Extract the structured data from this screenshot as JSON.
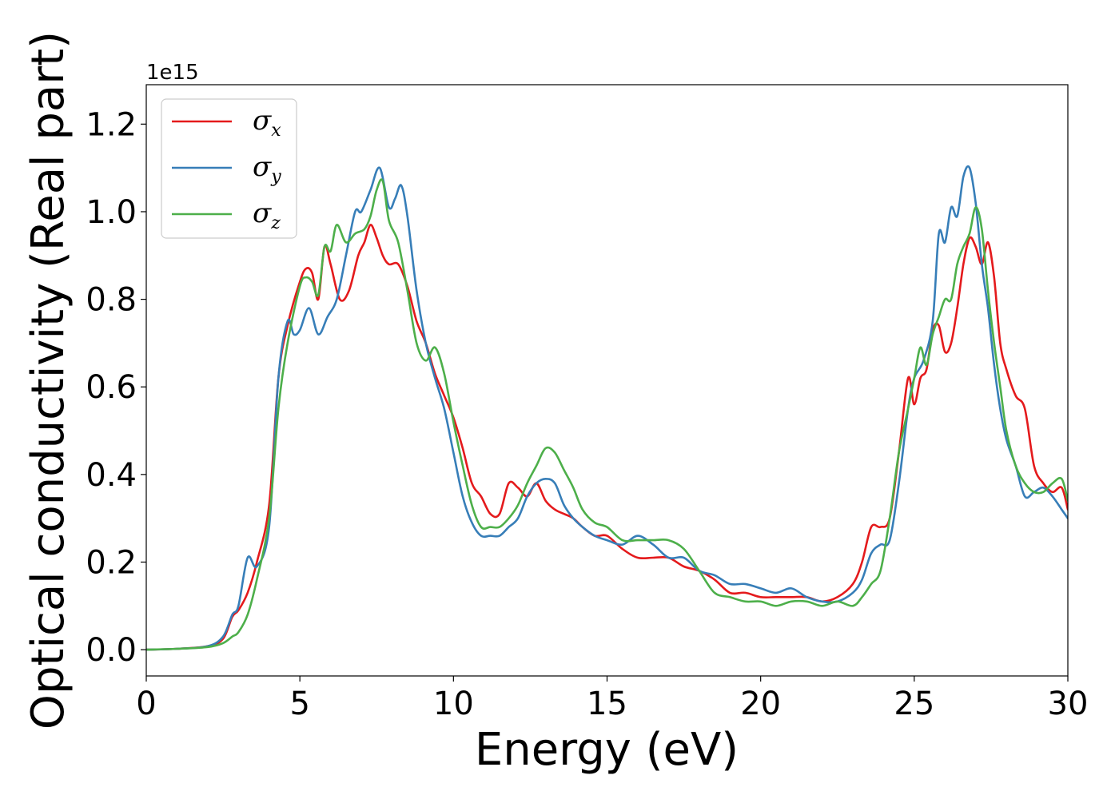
{
  "chart_data": {
    "type": "line",
    "title": "",
    "xlabel": "Energy (eV)",
    "ylabel": "Optical conductivity (Real part)",
    "y_offset_text": "1e15",
    "xlim": [
      0,
      30
    ],
    "ylim": [
      -0.06,
      1.29
    ],
    "y_scale_note": "values in units of 1e15",
    "x_ticks": [
      0,
      5,
      10,
      15,
      20,
      25,
      30
    ],
    "x_tick_labels": [
      "0",
      "5",
      "10",
      "15",
      "20",
      "25",
      "30"
    ],
    "y_ticks": [
      0.0,
      0.2,
      0.4,
      0.6,
      0.8,
      1.0,
      1.2
    ],
    "y_tick_labels": [
      "0.0",
      "0.2",
      "0.4",
      "0.6",
      "0.8",
      "1.0",
      "1.2"
    ],
    "grid": false,
    "legend_position": "top-left",
    "series": [
      {
        "name": "σx",
        "symbol": "σ",
        "subscript": "x",
        "color": "#e41a1c",
        "x": [
          0,
          1,
          2,
          2.5,
          2.8,
          3,
          3.3,
          3.6,
          4,
          4.3,
          4.6,
          5,
          5.2,
          5.4,
          5.6,
          5.8,
          6,
          6.3,
          6.6,
          6.9,
          7.1,
          7.3,
          7.5,
          7.7,
          7.9,
          8.2,
          8.5,
          8.8,
          9.1,
          9.4,
          9.7,
          10,
          10.3,
          10.6,
          10.9,
          11.2,
          11.5,
          11.8,
          12.1,
          12.4,
          12.7,
          13,
          13.3,
          13.6,
          13.9,
          14.2,
          14.6,
          15,
          15.5,
          16,
          16.5,
          17,
          17.5,
          18,
          18.5,
          19,
          19.5,
          20,
          20.5,
          21,
          21.5,
          22,
          22.5,
          23,
          23.3,
          23.6,
          23.9,
          24.2,
          24.5,
          24.8,
          25,
          25.2,
          25.4,
          25.6,
          25.8,
          26,
          26.2,
          26.4,
          26.6,
          26.8,
          27,
          27.2,
          27.4,
          27.6,
          27.8,
          28,
          28.3,
          28.6,
          28.9,
          29.2,
          29.5,
          29.8,
          30
        ],
        "y": [
          0,
          0.002,
          0.008,
          0.025,
          0.075,
          0.09,
          0.13,
          0.2,
          0.33,
          0.62,
          0.74,
          0.84,
          0.87,
          0.86,
          0.8,
          0.92,
          0.88,
          0.8,
          0.82,
          0.9,
          0.93,
          0.97,
          0.94,
          0.9,
          0.88,
          0.88,
          0.83,
          0.75,
          0.7,
          0.63,
          0.58,
          0.53,
          0.46,
          0.38,
          0.35,
          0.31,
          0.31,
          0.38,
          0.37,
          0.35,
          0.38,
          0.34,
          0.32,
          0.31,
          0.3,
          0.28,
          0.26,
          0.26,
          0.23,
          0.21,
          0.21,
          0.21,
          0.19,
          0.18,
          0.16,
          0.13,
          0.13,
          0.12,
          0.12,
          0.12,
          0.12,
          0.11,
          0.12,
          0.15,
          0.2,
          0.28,
          0.28,
          0.3,
          0.45,
          0.62,
          0.56,
          0.62,
          0.64,
          0.73,
          0.74,
          0.68,
          0.7,
          0.78,
          0.88,
          0.94,
          0.92,
          0.88,
          0.93,
          0.85,
          0.7,
          0.64,
          0.58,
          0.55,
          0.42,
          0.38,
          0.36,
          0.37,
          0.32
        ]
      },
      {
        "name": "σy",
        "symbol": "σ",
        "subscript": "y",
        "color": "#377eb8",
        "x": [
          0,
          1,
          2,
          2.5,
          2.8,
          3,
          3.3,
          3.6,
          4,
          4.3,
          4.6,
          4.8,
          5,
          5.3,
          5.6,
          5.9,
          6.2,
          6.5,
          6.8,
          7,
          7.3,
          7.6,
          7.9,
          8.1,
          8.3,
          8.5,
          8.8,
          9.1,
          9.4,
          9.7,
          10,
          10.3,
          10.6,
          10.9,
          11.2,
          11.5,
          11.8,
          12.1,
          12.4,
          12.7,
          13,
          13.3,
          13.6,
          13.9,
          14.2,
          14.6,
          15,
          15.5,
          16,
          16.5,
          17,
          17.5,
          18,
          18.5,
          19,
          19.5,
          20,
          20.5,
          21,
          21.5,
          22,
          22.5,
          23,
          23.3,
          23.6,
          23.9,
          24.2,
          24.5,
          24.8,
          25,
          25.3,
          25.6,
          25.8,
          26,
          26.2,
          26.4,
          26.6,
          26.8,
          27,
          27.2,
          27.4,
          27.6,
          27.8,
          28,
          28.3,
          28.6,
          28.9,
          29.2,
          29.5,
          29.8,
          30
        ],
        "y": [
          0,
          0.002,
          0.008,
          0.03,
          0.08,
          0.1,
          0.21,
          0.19,
          0.28,
          0.62,
          0.75,
          0.72,
          0.73,
          0.78,
          0.72,
          0.76,
          0.8,
          0.9,
          1.0,
          1.0,
          1.05,
          1.1,
          1.01,
          1.03,
          1.06,
          0.99,
          0.82,
          0.7,
          0.62,
          0.55,
          0.45,
          0.35,
          0.29,
          0.26,
          0.26,
          0.26,
          0.28,
          0.3,
          0.35,
          0.38,
          0.39,
          0.38,
          0.33,
          0.3,
          0.28,
          0.26,
          0.25,
          0.24,
          0.26,
          0.24,
          0.21,
          0.21,
          0.18,
          0.17,
          0.15,
          0.15,
          0.14,
          0.13,
          0.14,
          0.12,
          0.11,
          0.11,
          0.13,
          0.16,
          0.22,
          0.24,
          0.25,
          0.38,
          0.55,
          0.62,
          0.66,
          0.75,
          0.95,
          0.93,
          1.01,
          0.99,
          1.08,
          1.1,
          1.02,
          0.88,
          0.78,
          0.65,
          0.55,
          0.48,
          0.42,
          0.35,
          0.36,
          0.37,
          0.35,
          0.32,
          0.3
        ]
      },
      {
        "name": "σz",
        "symbol": "σ",
        "subscript": "z",
        "color": "#4daf4a",
        "x": [
          0,
          1,
          2,
          2.5,
          2.8,
          3,
          3.3,
          3.6,
          4,
          4.3,
          4.6,
          5,
          5.2,
          5.4,
          5.6,
          5.8,
          6,
          6.2,
          6.5,
          6.8,
          7.1,
          7.3,
          7.5,
          7.7,
          7.9,
          8.2,
          8.5,
          8.8,
          9.1,
          9.4,
          9.7,
          10,
          10.3,
          10.6,
          10.9,
          11.2,
          11.5,
          11.8,
          12.1,
          12.4,
          12.7,
          13,
          13.3,
          13.6,
          13.9,
          14.2,
          14.6,
          15,
          15.5,
          16,
          16.5,
          17,
          17.5,
          18,
          18.5,
          19,
          19.5,
          20,
          20.5,
          21,
          21.5,
          22,
          22.5,
          23,
          23.3,
          23.6,
          23.9,
          24.2,
          24.5,
          24.8,
          25,
          25.2,
          25.4,
          25.6,
          25.8,
          26,
          26.2,
          26.4,
          26.6,
          26.8,
          27,
          27.2,
          27.4,
          27.6,
          27.8,
          28,
          28.3,
          28.6,
          28.9,
          29.2,
          29.5,
          29.8,
          30
        ],
        "y": [
          0,
          0.002,
          0.006,
          0.015,
          0.03,
          0.04,
          0.08,
          0.16,
          0.3,
          0.55,
          0.7,
          0.83,
          0.85,
          0.84,
          0.81,
          0.92,
          0.91,
          0.97,
          0.93,
          0.95,
          0.96,
          0.99,
          1.05,
          1.07,
          0.98,
          0.93,
          0.82,
          0.7,
          0.66,
          0.69,
          0.63,
          0.52,
          0.42,
          0.33,
          0.28,
          0.28,
          0.28,
          0.3,
          0.33,
          0.38,
          0.42,
          0.46,
          0.45,
          0.41,
          0.37,
          0.32,
          0.29,
          0.28,
          0.25,
          0.25,
          0.25,
          0.25,
          0.23,
          0.18,
          0.13,
          0.12,
          0.11,
          0.11,
          0.1,
          0.11,
          0.11,
          0.1,
          0.11,
          0.1,
          0.12,
          0.15,
          0.18,
          0.3,
          0.45,
          0.55,
          0.62,
          0.69,
          0.65,
          0.72,
          0.76,
          0.8,
          0.8,
          0.88,
          0.92,
          0.95,
          1.01,
          0.96,
          0.82,
          0.7,
          0.6,
          0.5,
          0.42,
          0.38,
          0.36,
          0.36,
          0.38,
          0.39,
          0.34
        ]
      }
    ]
  }
}
